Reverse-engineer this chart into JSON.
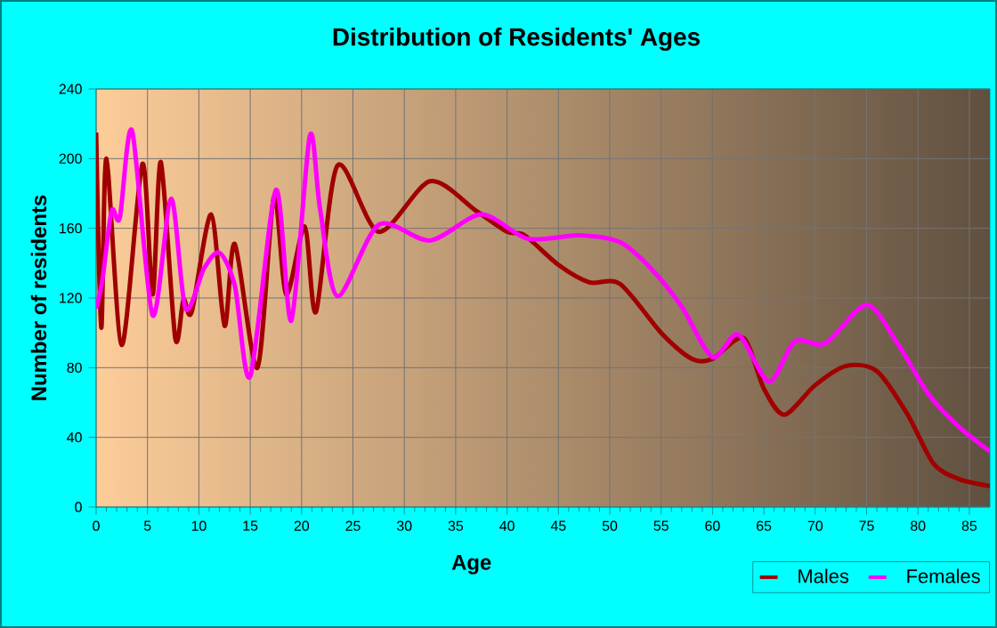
{
  "chart_data": {
    "type": "line",
    "title": "Distribution of Residents' Ages",
    "xlabel": "Age",
    "ylabel": "Number of residents",
    "xlim": [
      0,
      87
    ],
    "ylim": [
      0,
      240
    ],
    "xticks": [
      0,
      5,
      10,
      15,
      20,
      25,
      30,
      35,
      40,
      45,
      50,
      55,
      60,
      65,
      70,
      75,
      80,
      85
    ],
    "yticks": [
      0,
      40,
      80,
      120,
      160,
      200,
      240
    ],
    "grid": true,
    "legend": "bottom right",
    "marker": "none",
    "line_style": "solid",
    "series": [
      {
        "name": "Males",
        "color": "#a00000",
        "x": [
          0,
          0.5,
          1,
          2.5,
          4.5,
          5.5,
          6.3,
          7.7,
          8.5,
          9.3,
          11.2,
          12.5,
          13.5,
          15.7,
          17.3,
          18.5,
          20.3,
          21.4,
          23.5,
          27.5,
          32.5,
          37,
          40,
          41.7,
          45,
          48,
          51,
          55,
          58,
          60,
          63,
          65,
          67,
          70,
          73,
          76,
          79,
          81.5,
          84,
          87
        ],
        "values": [
          215,
          103,
          200,
          93,
          197,
          122,
          198,
          97,
          119,
          112,
          168,
          104,
          151,
          80,
          178,
          122,
          161,
          112,
          196,
          158,
          187,
          170,
          158,
          156,
          139,
          129,
          128,
          100,
          85,
          85,
          97,
          68,
          53,
          70,
          81,
          78,
          53,
          25,
          16,
          12
        ]
      },
      {
        "name": "Females",
        "color": "#ff00ff",
        "x": [
          0,
          0.6,
          1.5,
          2.3,
          3.5,
          5.5,
          7.3,
          8.7,
          10.5,
          12,
          13.5,
          15,
          17.5,
          19,
          20.8,
          21.8,
          23.5,
          27.5,
          32.5,
          37.5,
          42,
          47,
          51,
          54,
          57,
          60,
          62.5,
          65.5,
          68,
          71,
          75,
          78,
          81,
          84,
          87
        ],
        "values": [
          114,
          130,
          170,
          166,
          216,
          110,
          177,
          114,
          137,
          146,
          127,
          75,
          182,
          107,
          213,
          171,
          121,
          162,
          153,
          168,
          154,
          156,
          152,
          137,
          115,
          86,
          99,
          72,
          95,
          94,
          116,
          94,
          65,
          46,
          32
        ]
      }
    ]
  }
}
